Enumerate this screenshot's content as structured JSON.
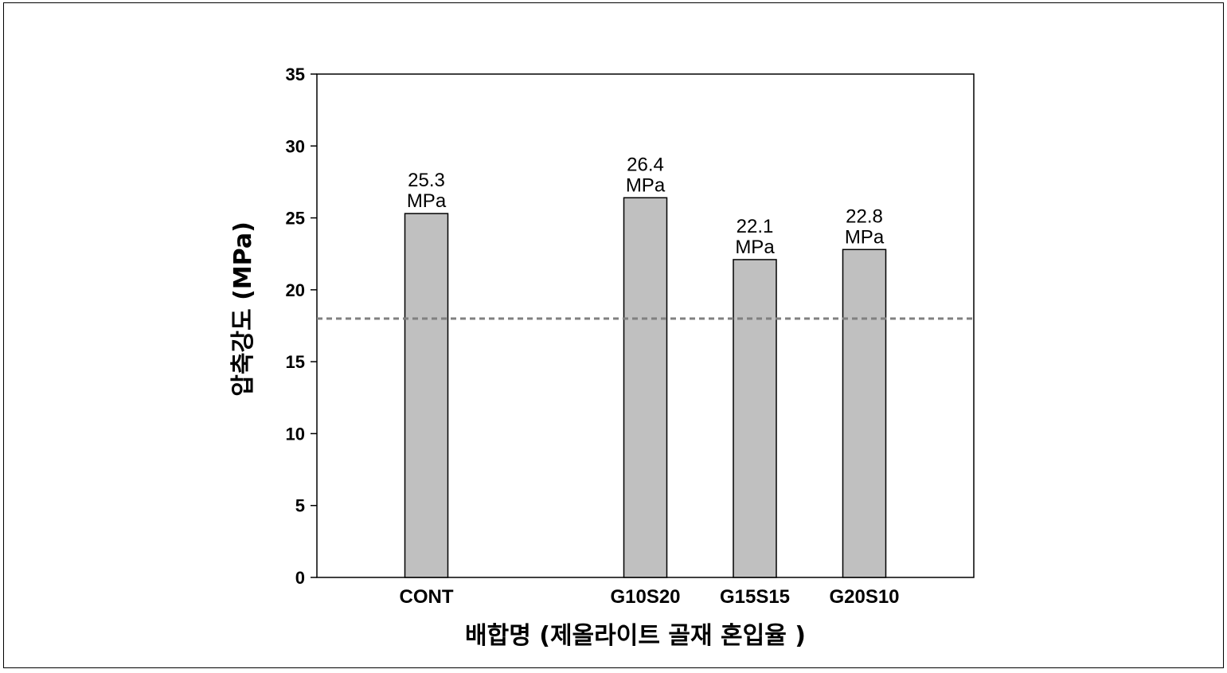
{
  "chart_data": {
    "type": "bar",
    "categories": [
      "CONT",
      "",
      "G10S20",
      "G15S15",
      "G20S10"
    ],
    "values": [
      25.3,
      null,
      26.4,
      22.1,
      22.8
    ],
    "data_labels": [
      [
        "25.3",
        "MPa"
      ],
      null,
      [
        "26.4",
        "MPa"
      ],
      [
        "22.1",
        "MPa"
      ],
      [
        "22.8",
        "MPa"
      ]
    ],
    "xlabel": "배합명 (제올라이트 골재 혼입율 )",
    "ylabel": "압축강도 (MPa)",
    "ylim": [
      0,
      35
    ],
    "yticks": [
      0,
      5,
      10,
      15,
      20,
      25,
      30,
      35
    ],
    "reference_line": {
      "value": 18,
      "style": "dashed",
      "color": "#808080"
    },
    "bar_color": "#c0c0c0",
    "bar_edge_color": "#000000",
    "grid": false,
    "legend": "none"
  }
}
